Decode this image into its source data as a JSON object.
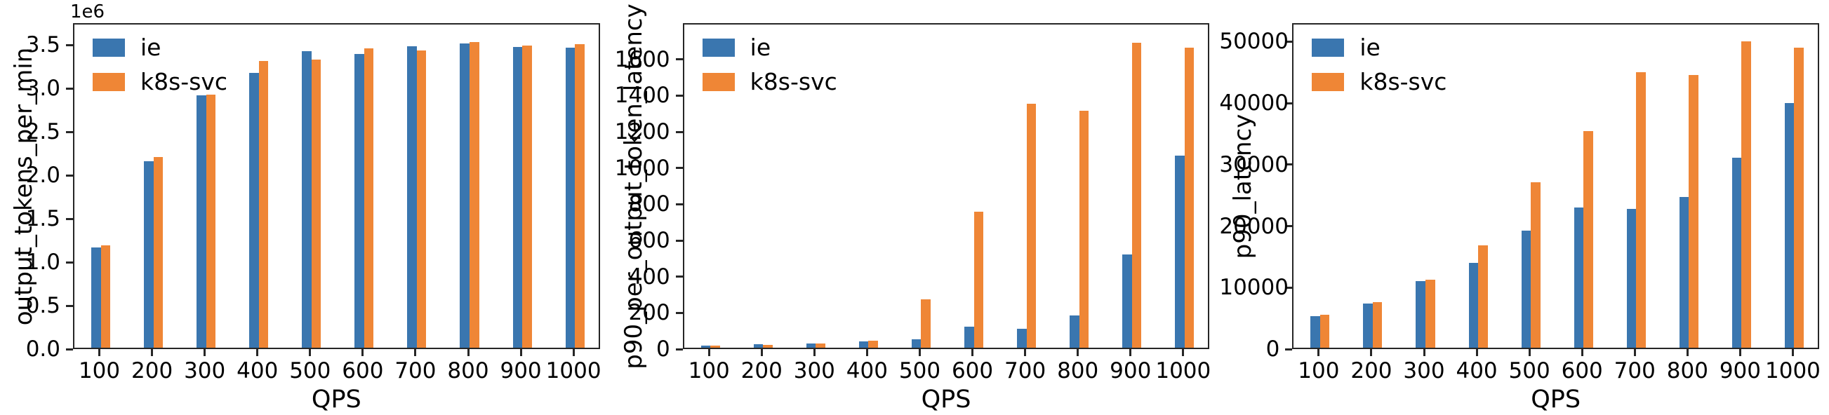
{
  "figure": {
    "background": "#ffffff",
    "text_color": "#000000",
    "spine_color": "#262626",
    "xlabel": "QPS",
    "categories": [
      "100",
      "200",
      "300",
      "400",
      "500",
      "600",
      "700",
      "800",
      "900",
      "1000"
    ],
    "legend": [
      {
        "label": "ie",
        "color": "#3a76af"
      },
      {
        "label": "k8s-svc",
        "color": "#ef8636"
      }
    ]
  },
  "chart_data": [
    {
      "type": "bar",
      "title": "",
      "xlabel": "QPS",
      "ylabel": "output_tokens_per_min",
      "y_offset_label": "1e6",
      "grid": false,
      "legend_position": "upper-left",
      "categories": [
        "100",
        "200",
        "300",
        "400",
        "500",
        "600",
        "700",
        "800",
        "900",
        "1000"
      ],
      "ylim": [
        0,
        3750000
      ],
      "ytick_values": [
        0,
        500000,
        1000000,
        1500000,
        2000000,
        2500000,
        3000000,
        3500000
      ],
      "ytick_labels": [
        "0.0",
        "0.5",
        "1.0",
        "1.5",
        "2.0",
        "2.5",
        "3.0",
        "3.5"
      ],
      "series": [
        {
          "name": "ie",
          "color": "#3a76af",
          "values": [
            1160000,
            2160000,
            2930000,
            3190000,
            3440000,
            3410000,
            3500000,
            3530000,
            3490000,
            3480000
          ]
        },
        {
          "name": "k8s-svc",
          "color": "#ef8636",
          "values": [
            1190000,
            2210000,
            2940000,
            3330000,
            3340000,
            3470000,
            3450000,
            3550000,
            3510000,
            3520000
          ]
        }
      ]
    },
    {
      "type": "bar",
      "title": "",
      "xlabel": "QPS",
      "ylabel": "p90_per_output_token_latency",
      "y_offset_label": "",
      "grid": false,
      "legend_position": "upper-left",
      "categories": [
        "100",
        "200",
        "300",
        "400",
        "500",
        "600",
        "700",
        "800",
        "900",
        "1000"
      ],
      "ylim": [
        0,
        1800
      ],
      "ytick_values": [
        0,
        200,
        400,
        600,
        800,
        1000,
        1200,
        1400,
        1600
      ],
      "ytick_labels": [
        "0",
        "200",
        "400",
        "600",
        "800",
        "1000",
        "1200",
        "1400",
        "1600"
      ],
      "series": [
        {
          "name": "ie",
          "color": "#3a76af",
          "values": [
            10,
            18,
            25,
            35,
            48,
            118,
            106,
            178,
            518,
            1068
          ]
        },
        {
          "name": "k8s-svc",
          "color": "#ef8636",
          "values": [
            10,
            17,
            24,
            40,
            268,
            758,
            1358,
            1318,
            1700,
            1670
          ]
        }
      ]
    },
    {
      "type": "bar",
      "title": "",
      "xlabel": "QPS",
      "ylabel": "p90_latency",
      "y_offset_label": "",
      "grid": false,
      "legend_position": "upper-left",
      "categories": [
        "100",
        "200",
        "300",
        "400",
        "500",
        "600",
        "700",
        "800",
        "900",
        "1000"
      ],
      "ylim": [
        0,
        53000
      ],
      "ytick_values": [
        0,
        10000,
        20000,
        30000,
        40000,
        50000
      ],
      "ytick_labels": [
        "0",
        "10000",
        "20000",
        "30000",
        "40000",
        "50000"
      ],
      "series": [
        {
          "name": "ie",
          "color": "#3a76af",
          "values": [
            5200,
            7300,
            10900,
            13900,
            19200,
            23000,
            22800,
            24700,
            31200,
            40100
          ]
        },
        {
          "name": "k8s-svc",
          "color": "#ef8636",
          "values": [
            5400,
            7500,
            11100,
            16800,
            27100,
            35500,
            45200,
            44700,
            50300,
            49200
          ]
        }
      ]
    }
  ]
}
